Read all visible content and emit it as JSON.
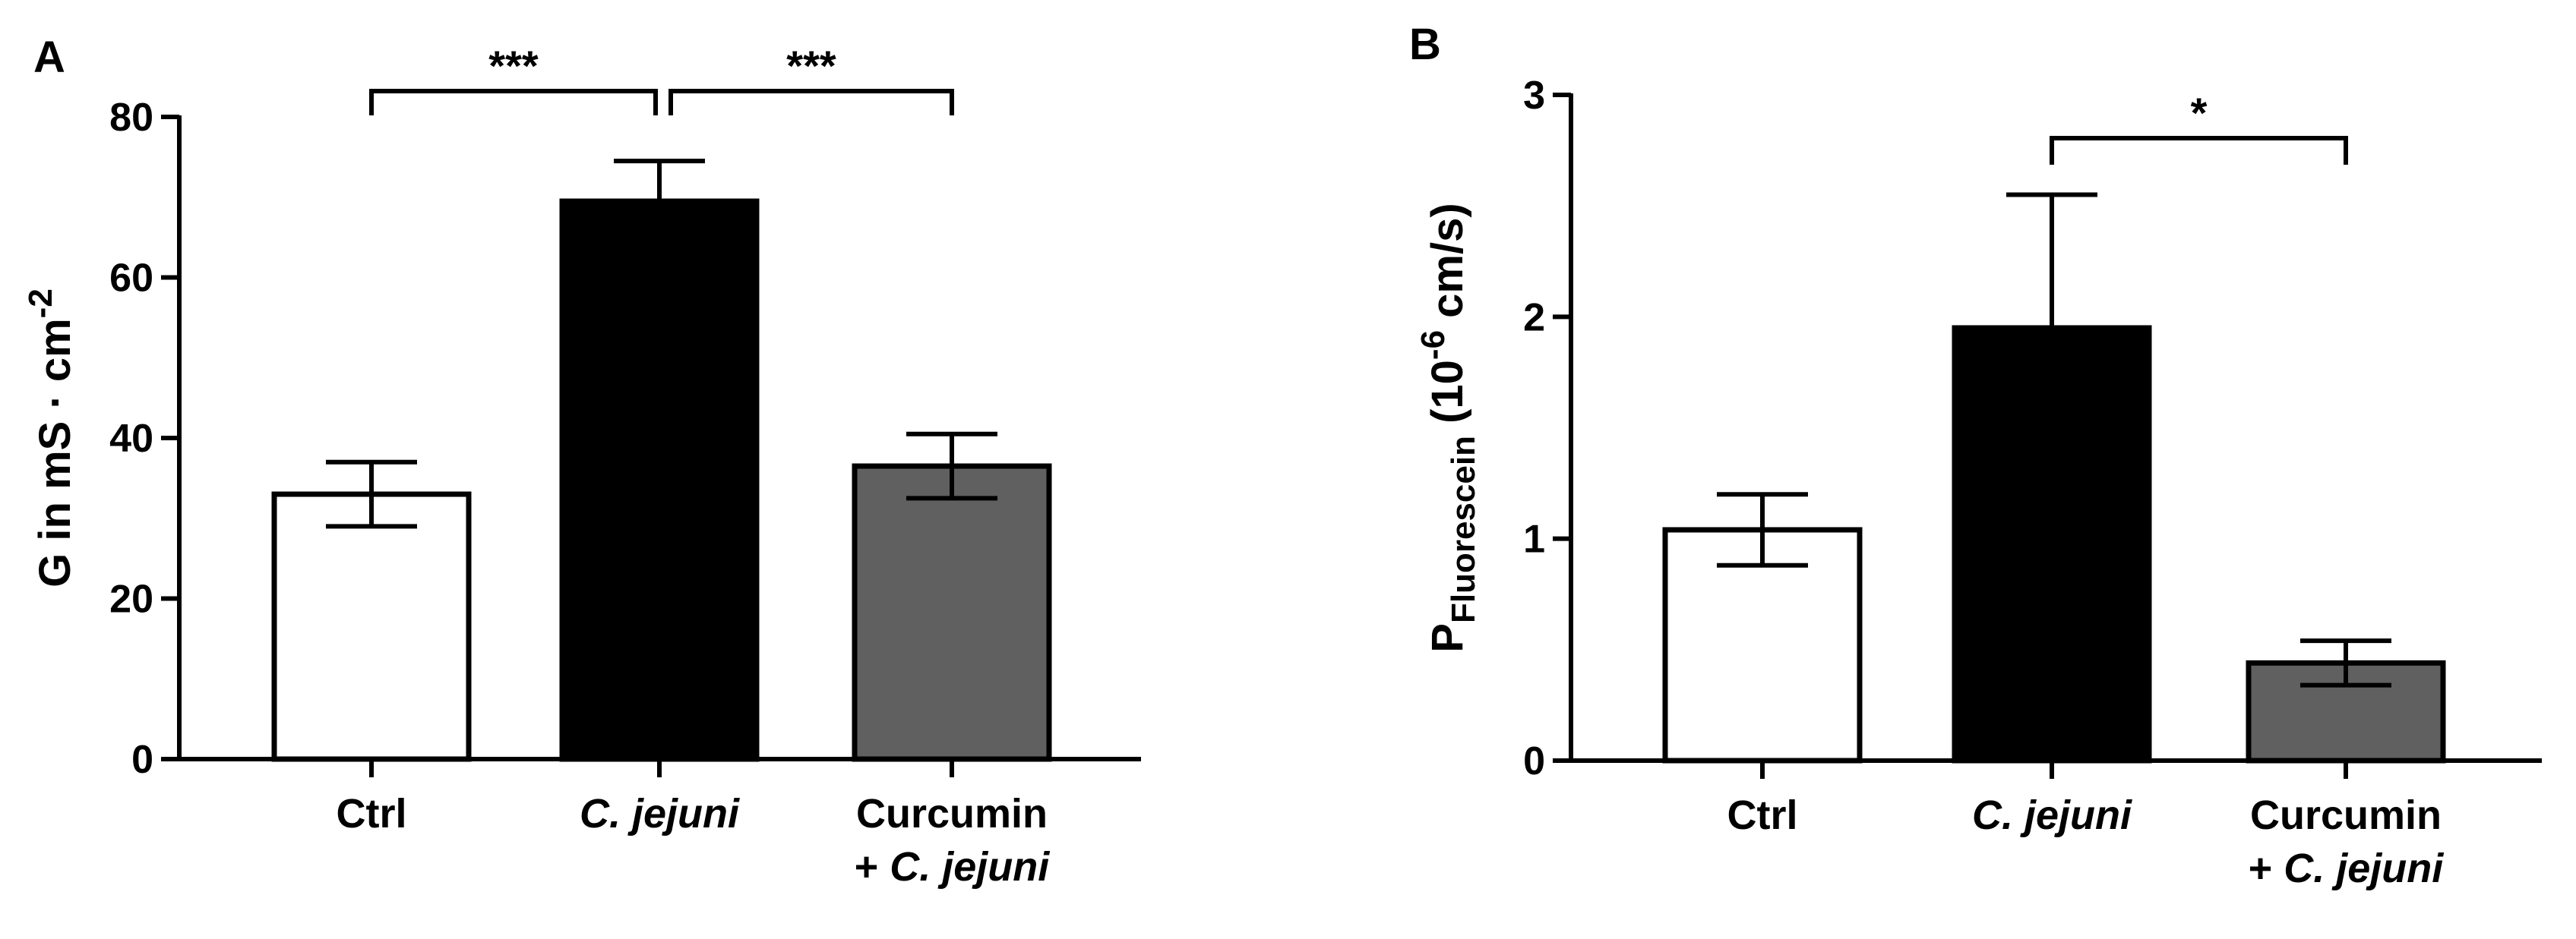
{
  "chart_data": [
    {
      "type": "bar",
      "panel_label": "A",
      "categories": [
        {
          "line1": "Ctrl",
          "line2_prefix": "",
          "line2_italic": ""
        },
        {
          "line1": "",
          "line2_prefix": "",
          "line2_italic": "C. jejuni"
        },
        {
          "line1": "Curcumin",
          "line2_prefix": "+ ",
          "line2_italic": "C. jejuni"
        }
      ],
      "values": [
        33,
        69.5,
        36.5
      ],
      "errors": [
        4,
        5,
        4
      ],
      "colors": [
        "#ffffff",
        "#000000",
        "#606060"
      ],
      "ylabel": {
        "main": "G in mS · cm",
        "superscript": "-2"
      },
      "ylim": [
        0,
        80
      ],
      "yticks": [
        0,
        20,
        40,
        60,
        80
      ],
      "tick_labels": [
        "0",
        "20",
        "40",
        "60",
        "80"
      ],
      "significance": [
        {
          "from": 0,
          "to": 1,
          "label": "***"
        },
        {
          "from": 1,
          "to": 2,
          "label": "***"
        }
      ],
      "grid": false,
      "legend": "none"
    },
    {
      "type": "bar",
      "panel_label": "B",
      "categories": [
        {
          "line1": "Ctrl",
          "line2_prefix": "",
          "line2_italic": ""
        },
        {
          "line1": "",
          "line2_prefix": "",
          "line2_italic": "C. jejuni"
        },
        {
          "line1": "Curcumin",
          "line2_prefix": "+ ",
          "line2_italic": "C. jejuni"
        }
      ],
      "values": [
        1.04,
        1.95,
        0.44
      ],
      "errors": [
        0.16,
        0.6,
        0.1
      ],
      "colors": [
        "#ffffff",
        "#000000",
        "#606060"
      ],
      "ylabel": {
        "symbol": "P",
        "subscript": "Fluorescein",
        "paren_open": " (10",
        "superscript": "-6",
        "rest": " cm/s)"
      },
      "ylim": [
        0,
        3
      ],
      "yticks": [
        0,
        1,
        2,
        3
      ],
      "tick_labels": [
        "0",
        "1",
        "2",
        "3"
      ],
      "significance": [
        {
          "from": 1,
          "to": 2,
          "label": "*"
        }
      ],
      "grid": false,
      "legend": "none"
    }
  ]
}
